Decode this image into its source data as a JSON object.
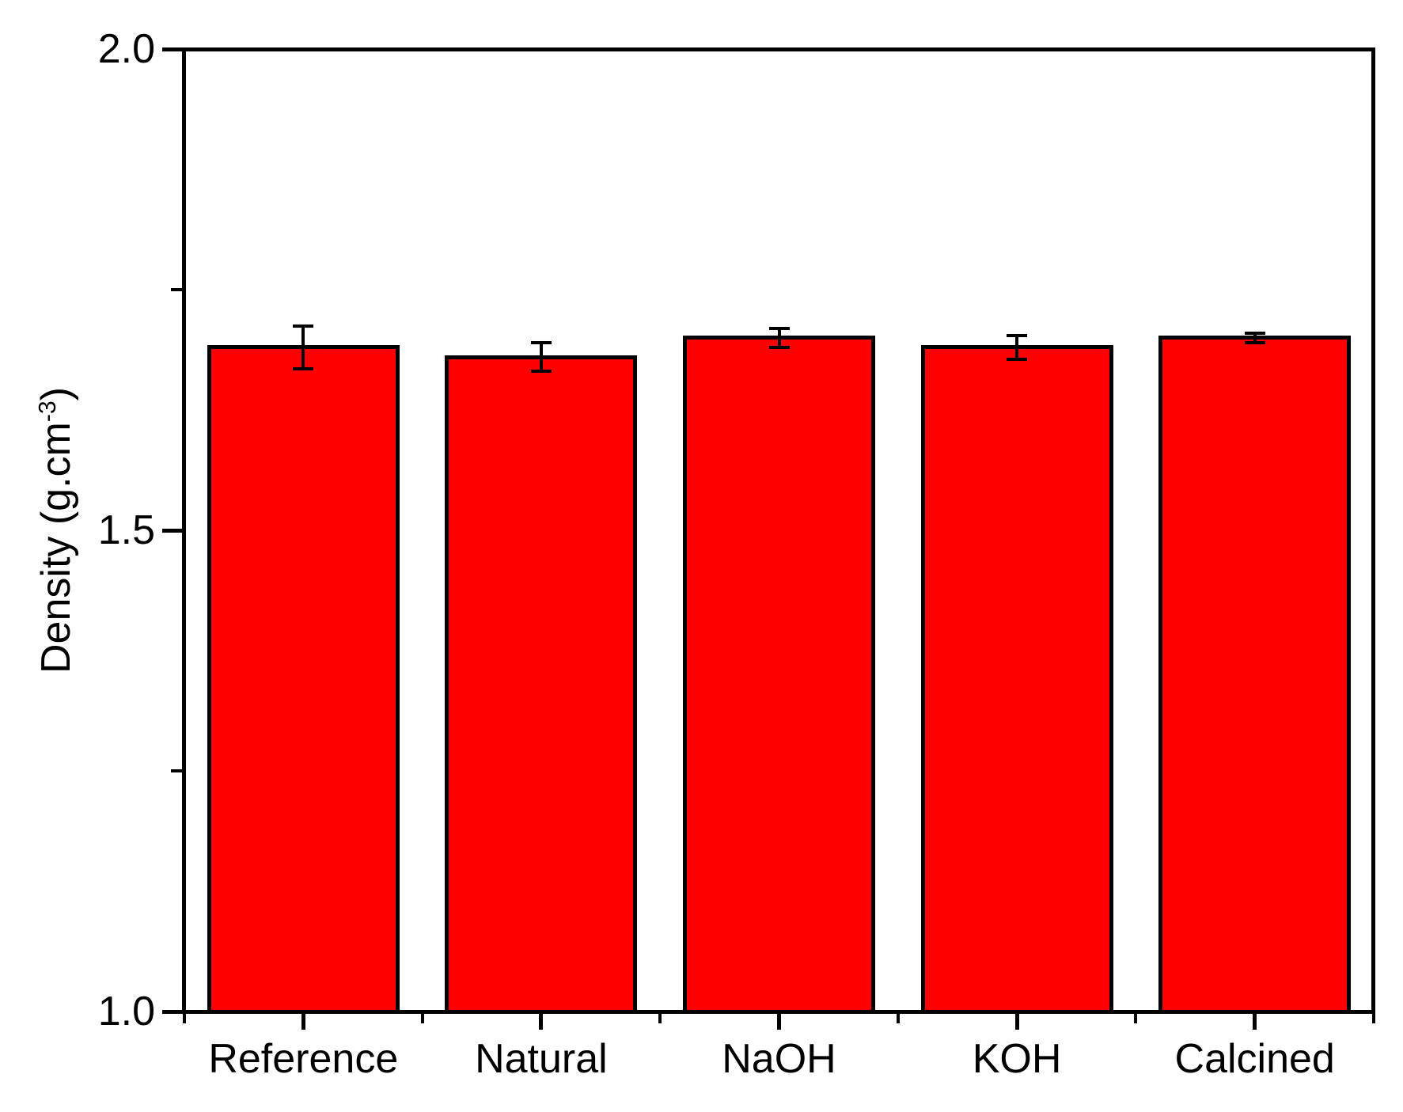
{
  "figure": {
    "background": "#ffffff",
    "text_color": "#000000"
  },
  "chart_data": {
    "type": "bar",
    "title": "",
    "categories": [
      "Reference",
      "Natural",
      "NaOH",
      "KOH",
      "Calcined"
    ],
    "values": [
      1.69,
      1.68,
      1.7,
      1.69,
      1.7
    ],
    "errors": [
      0.022,
      0.015,
      0.01,
      0.012,
      0.005
    ],
    "bar_color": "#ff0000",
    "bar_edge_color": "#000000",
    "error_color": "#000000",
    "xlabel": "",
    "ylabel": "Density (g.cm-3)",
    "ylabel_parts": {
      "prefix": "Density (g.cm",
      "sup": "-3",
      "suffix": ")"
    },
    "ylim": [
      1.0,
      2.0
    ],
    "yticks": [
      {
        "value": 1.0,
        "label": "1.0"
      },
      {
        "value": 1.5,
        "label": "1.5"
      },
      {
        "value": 2.0,
        "label": "2.0"
      }
    ],
    "yticks_minor": [
      1.25,
      1.75
    ],
    "grid": false,
    "legend": null,
    "layout_hints": {
      "box_spines": true,
      "ticks_direction": "out",
      "x_major_ticks": "category centers",
      "x_minor_ticks": "category boundaries"
    }
  }
}
